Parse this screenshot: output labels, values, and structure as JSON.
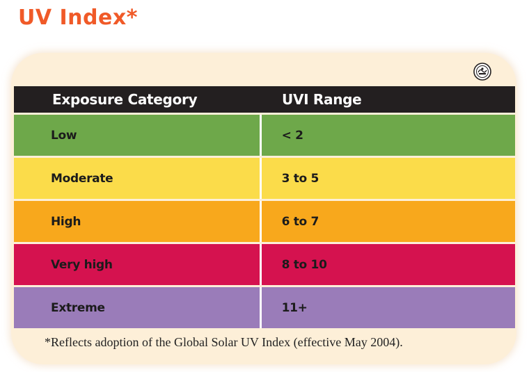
{
  "heading": {
    "title": "UV Index*",
    "color": "#f05a28"
  },
  "card": {
    "background": "#fdefd8",
    "logo_icon": "epa-seal-icon"
  },
  "table": {
    "header_background": "#231f20",
    "divider_color": "#ffffff",
    "headers": {
      "category": "Exposure Category",
      "range": "UVI Range"
    },
    "rows": [
      {
        "category": "Low",
        "range": "< 2",
        "color": "#6ea84a"
      },
      {
        "category": "Moderate",
        "range": "3 to 5",
        "color": "#fbdc4a"
      },
      {
        "category": "High",
        "range": "6 to 7",
        "color": "#f8a81c"
      },
      {
        "category": "Very high",
        "range": "8 to 10",
        "color": "#d5124f"
      },
      {
        "category": "Extreme",
        "range": "11+",
        "color": "#9a7cb9"
      }
    ]
  },
  "footnote": "*Reflects adoption of the Global Solar UV Index (effective May 2004)."
}
